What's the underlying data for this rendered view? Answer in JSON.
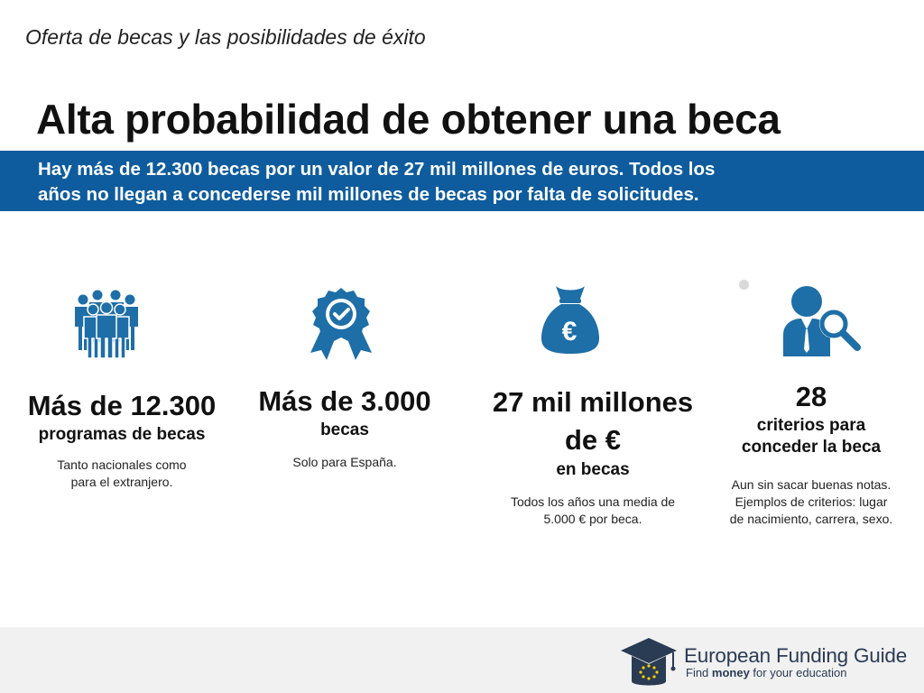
{
  "header": {
    "subtitle": "Oferta de becas y las posibilidades de éxito",
    "title": "Alta probabilidad de obtener una beca"
  },
  "banner": {
    "line1": "Hay más de 12.300 becas por un valor de 27 mil millones de euros. Todos los",
    "line2": "años no llegan a concederse mil millones de becas por falta de solicitudes."
  },
  "stats": [
    {
      "icon": "people-group-icon",
      "headline": "Más de 12.300",
      "label": "programas de becas",
      "note_line1": "Tanto nacionales como",
      "note_line2": "para el extranjero."
    },
    {
      "icon": "award-badge-icon",
      "headline": "Más de 3.000",
      "label": "becas",
      "note_line1": "Solo para España."
    },
    {
      "icon": "money-bag-euro-icon",
      "headline_line1": "27 mil millones",
      "headline_line2": "de €",
      "label": "en becas",
      "note_line1": "Todos los años una media de",
      "note_line2": "5.000 € por beca."
    },
    {
      "icon": "person-magnifier-icon",
      "headline": "28",
      "label_line1": "criterios para",
      "label_line2": "conceder la beca",
      "note_line1": "Aun sin sacar buenas notas.",
      "note_line2": "Ejemplos de criterios: lugar",
      "note_line3": "de nacimiento, carrera, sexo."
    }
  ],
  "footer": {
    "logo_icon": "graduation-cap-eu-icon",
    "logo_name_part1": "European ",
    "logo_name_part2": "Funding Guide",
    "tagline_part1": "Find ",
    "tagline_bold": "money",
    "tagline_part2": " for your education"
  },
  "colors": {
    "accent": "#0e5c9d",
    "icon": "#1e6ea7",
    "footer_bg": "#f1f1f1",
    "logo": "#2a3b54"
  }
}
